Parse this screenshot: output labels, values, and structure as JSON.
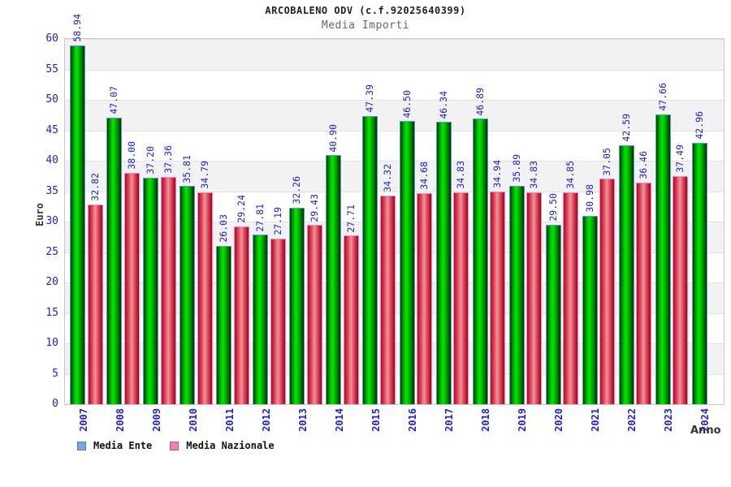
{
  "page": {
    "background": "#ffffff"
  },
  "chart_data": {
    "type": "bar",
    "title": "ARCOBALENO ODV (c.f.92025640399)",
    "subtitle": "Media Importi",
    "xlabel": "Anno",
    "ylabel": "Euro",
    "ylim": [
      0,
      60
    ],
    "yticks": [
      0,
      5,
      10,
      15,
      20,
      25,
      30,
      35,
      40,
      45,
      50,
      55,
      60
    ],
    "grid": "horizontal-bands-every-5",
    "legend_position": "bottom-left",
    "value_labels": "rotated-90-above-bars",
    "categories": [
      "2007",
      "2008",
      "2009",
      "2010",
      "2011",
      "2012",
      "2013",
      "2014",
      "2015",
      "2016",
      "2017",
      "2018",
      "2019",
      "2020",
      "2021",
      "2022",
      "2023",
      "2024"
    ],
    "series": [
      {
        "name": "Media Ente",
        "values": [
          58.94,
          47.07,
          37.2,
          35.81,
          26.03,
          27.81,
          32.26,
          40.9,
          47.39,
          46.5,
          46.34,
          46.89,
          35.89,
          29.5,
          30.98,
          42.59,
          47.66,
          42.96
        ]
      },
      {
        "name": "Media Nazionale",
        "values": [
          32.82,
          38.0,
          37.36,
          34.79,
          29.24,
          27.19,
          29.43,
          27.71,
          34.32,
          34.68,
          34.83,
          34.94,
          34.83,
          34.85,
          37.05,
          36.46,
          37.49,
          null
        ]
      }
    ],
    "colors": {
      "label_blue": "#2222cc",
      "band_gray": "#f2f2f2",
      "band_white": "#ffffff",
      "series_styles": [
        {
          "gradient": [
            "#003b00 0%",
            "#00a400 22%",
            "#00e800 42%",
            "#00c400 58%",
            "#007a00 80%",
            "#012d01 100%"
          ],
          "border": "#5b9bd5",
          "legend_fill": "#7da7d9",
          "legend_border": "#5580b0"
        },
        {
          "gradient": [
            "#b40822 0%",
            "#d8445c 25%",
            "#ef9494 48%",
            "#d8445c 72%, #a00018 100%"
          ],
          "border": "#ff85c2",
          "legend_fill": "#ef82b0",
          "legend_border": "#c05585"
        }
      ]
    }
  }
}
